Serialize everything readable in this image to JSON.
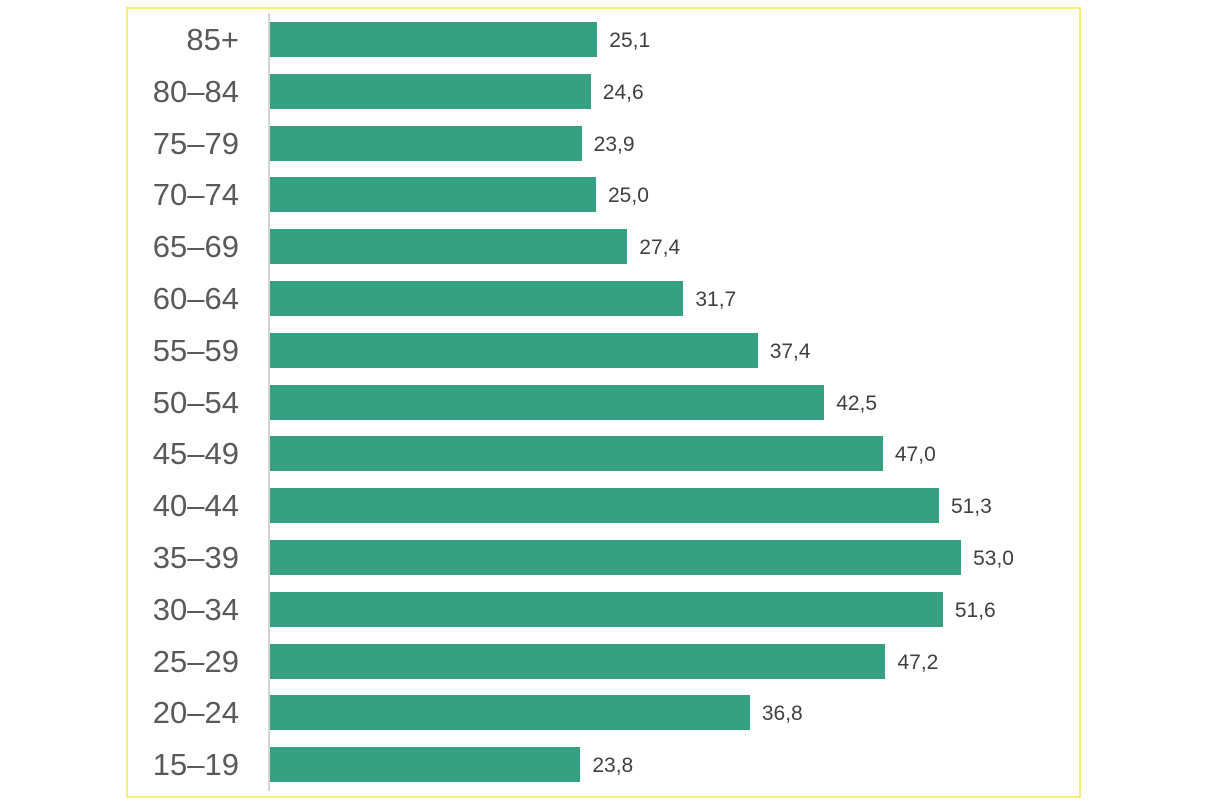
{
  "chart_data": {
    "type": "bar",
    "orientation": "horizontal",
    "title": "",
    "xlabel": "",
    "ylabel": "",
    "categories": [
      "85+",
      "80–84",
      "75–79",
      "70–74",
      "65–69",
      "60–64",
      "55–59",
      "50–54",
      "45–49",
      "40–44",
      "35–39",
      "30–34",
      "25–29",
      "20–24",
      "15–19"
    ],
    "values": [
      25.1,
      24.6,
      23.9,
      25.0,
      27.4,
      31.7,
      37.4,
      42.5,
      47.0,
      51.3,
      53.0,
      51.6,
      47.2,
      36.8,
      23.8
    ],
    "value_labels": [
      "25,1",
      "24,6",
      "23,9",
      "25,0",
      "27,4",
      "31,7",
      "37,4",
      "42,5",
      "47,0",
      "51,3",
      "53,0",
      "51,6",
      "47,2",
      "36,8",
      "23,8"
    ],
    "xlim": [
      0,
      53
    ],
    "grid": false,
    "legend": null,
    "bar_color": "#36a083",
    "frame_color": "#f5f07a"
  }
}
